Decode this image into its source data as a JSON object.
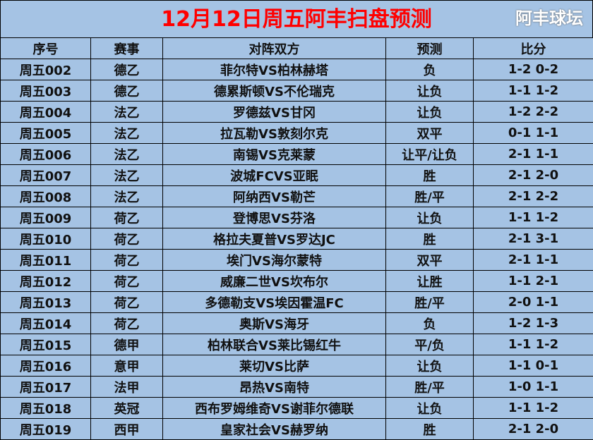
{
  "title": "12月12日周五阿丰扫盘预测",
  "headers": [
    "序号",
    "赛事",
    "对阵双方",
    "预测",
    "比分"
  ],
  "rows": [
    [
      "周五002",
      "德乙",
      "菲尔特VS柏林赫塔",
      "负",
      "1-2 0-2"
    ],
    [
      "周五003",
      "德乙",
      "德累斯顿VS不伦瑞克",
      "让负",
      "1-1 1-2"
    ],
    [
      "周五004",
      "法乙",
      "罗德兹VS甘冈",
      "让负",
      "1-2 2-2"
    ],
    [
      "周五005",
      "法乙",
      "拉瓦勒VS敦刻尔克",
      "双平",
      "0-1 1-1"
    ],
    [
      "周五006",
      "法乙",
      "南锡VS克莱蒙",
      "让平/让负",
      "2-1 1-1"
    ],
    [
      "周五007",
      "法乙",
      "波城FCVS亚眠",
      "胜",
      "2-1 2-0"
    ],
    [
      "周五008",
      "法乙",
      "阿纳西VS勒芒",
      "胜/平",
      "2-1 2-2"
    ],
    [
      "周五009",
      "荷乙",
      "登博思VS芬洛",
      "让负",
      "1-1 1-2"
    ],
    [
      "周五010",
      "荷乙",
      "格拉夫夏普VS罗达JC",
      "胜",
      "2-1 3-1"
    ],
    [
      "周五011",
      "荷乙",
      "埃门VS海尔蒙特",
      "双平",
      "2-1 1-1"
    ],
    [
      "周五012",
      "荷乙",
      "威廉二世VS坎布尔",
      "让胜",
      "1-1 2-1"
    ],
    [
      "周五013",
      "荷乙",
      "多德勒支VS埃因霍温FC",
      "胜/平",
      "2-0 1-1"
    ],
    [
      "周五014",
      "荷乙",
      "奥斯VS海牙",
      "负",
      "1-2 1-3"
    ],
    [
      "周五015",
      "德甲",
      "柏林联合VS莱比锡红牛",
      "平/负",
      "1-1 1-2"
    ],
    [
      "周五016",
      "意甲",
      "莱切VS比萨",
      "让负",
      "1-1 0-1"
    ],
    [
      "周五017",
      "法甲",
      "昂热VS南特",
      "胜/平",
      "1-0 1-1"
    ],
    [
      "周五018",
      "英冠",
      "西布罗姆维奇VS谢菲尔德联",
      "让负",
      "1-1 1-2"
    ],
    [
      "周五019",
      "西甲",
      "皇家社会VS赫罗纳",
      "胜",
      "2-1 2-0"
    ]
  ],
  "watermark": "阿丰球坛",
  "colors": {
    "background": "#a5c3e4",
    "title": "#ff0000"
  }
}
